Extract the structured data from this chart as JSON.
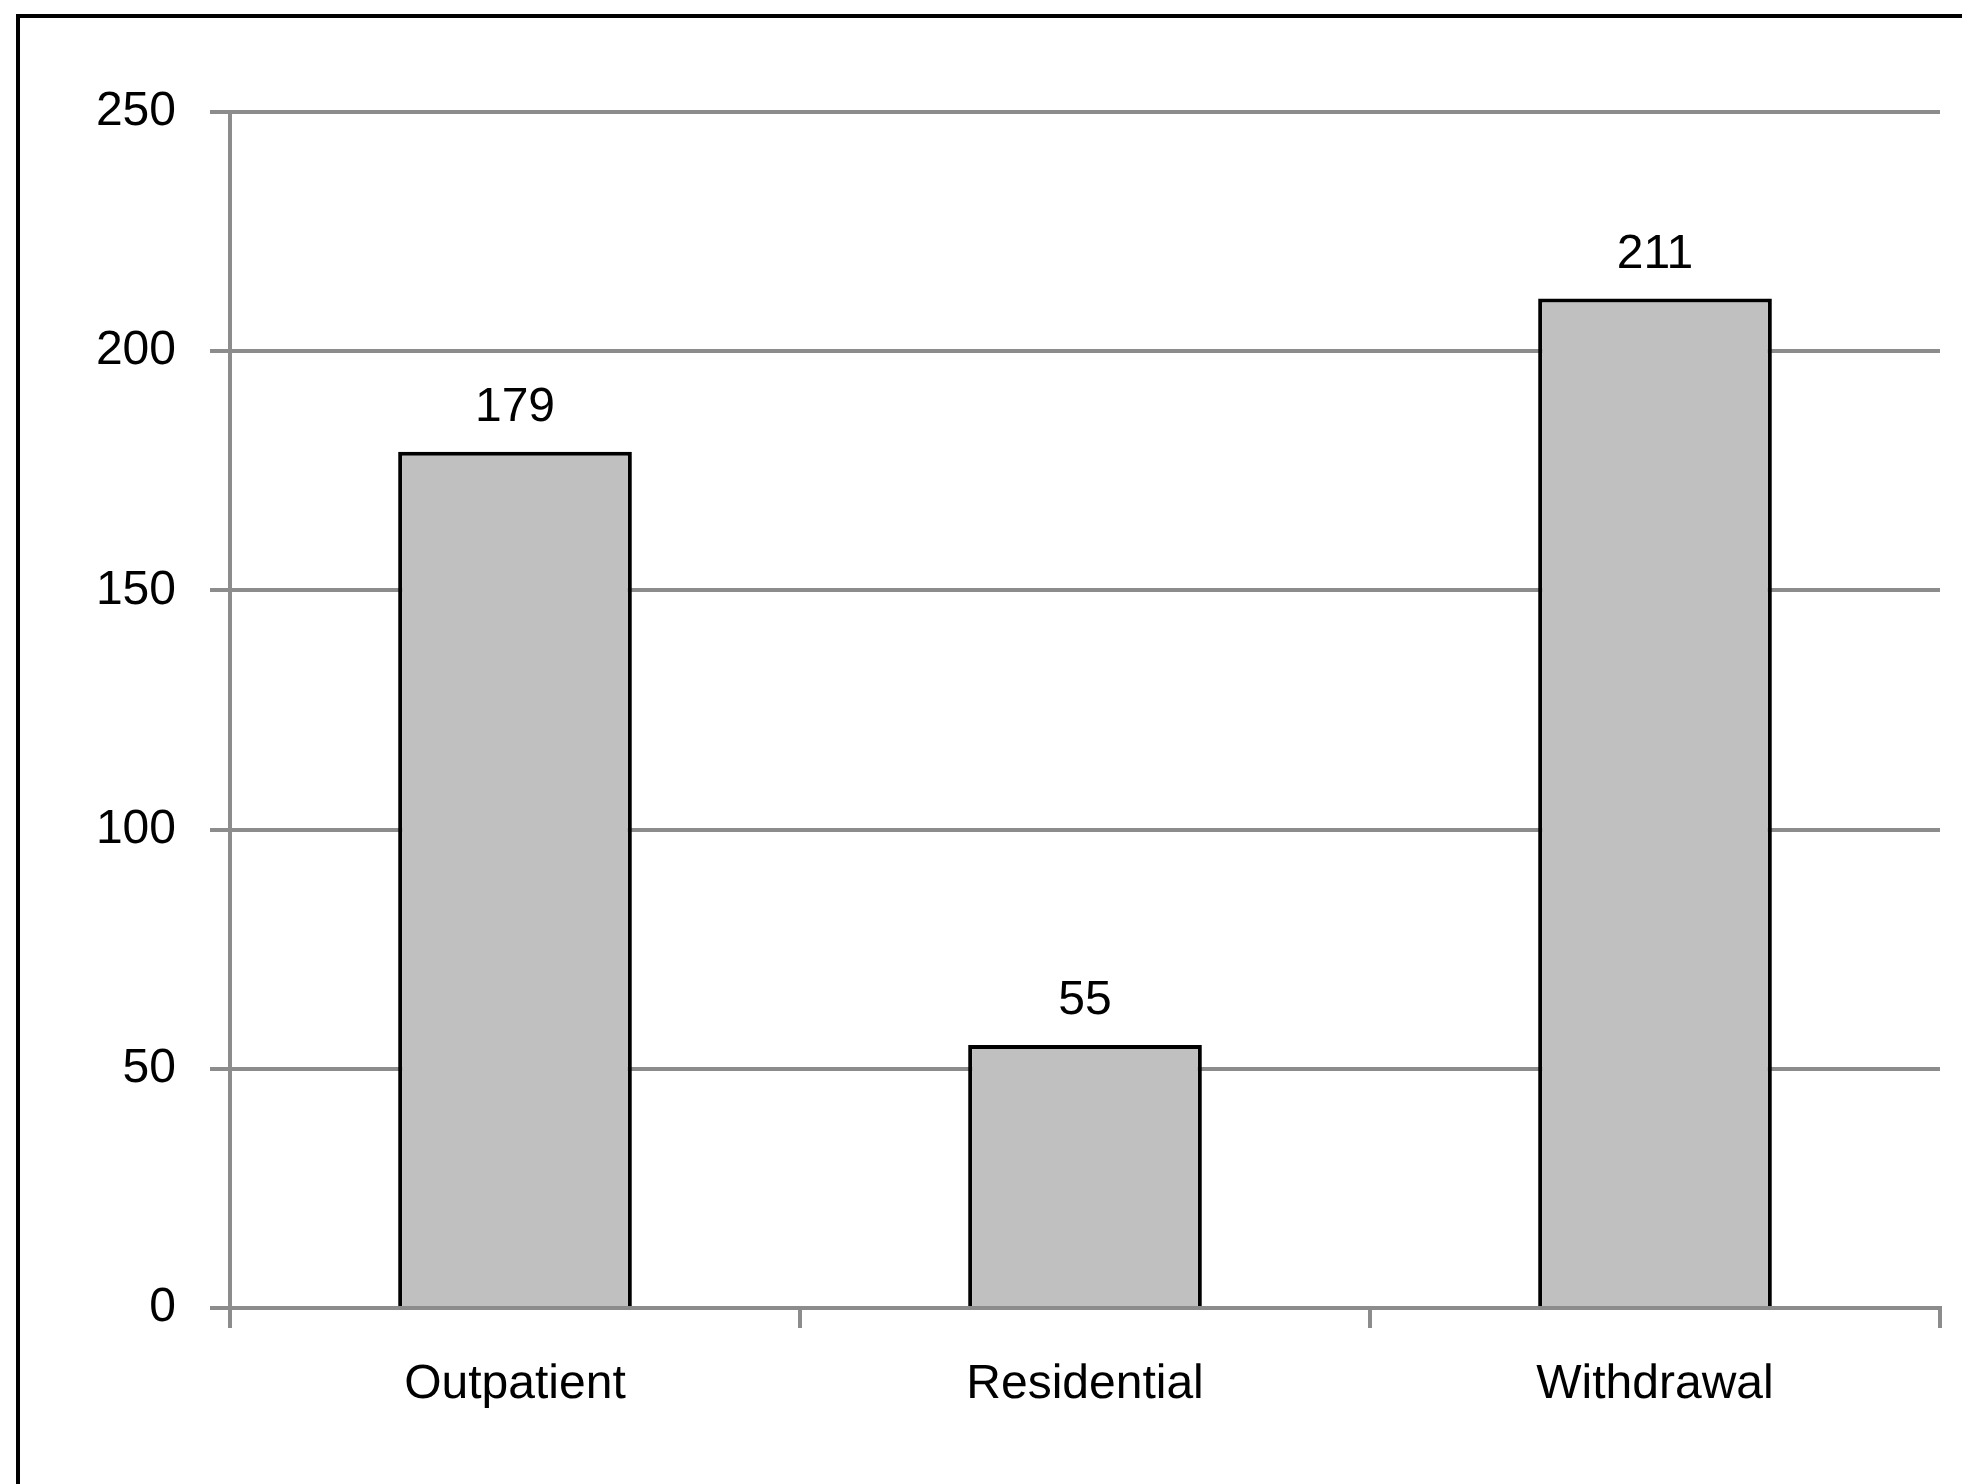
{
  "chart_data": {
    "type": "bar",
    "categories": [
      "Outpatient",
      "Residential",
      "Withdrawal"
    ],
    "values": [
      179,
      55,
      211
    ],
    "color": "#c0c0c0",
    "ylim": [
      0,
      250
    ],
    "yticks": [
      0,
      50,
      100,
      150,
      200,
      250
    ],
    "grid": "y",
    "data_labels": true
  }
}
